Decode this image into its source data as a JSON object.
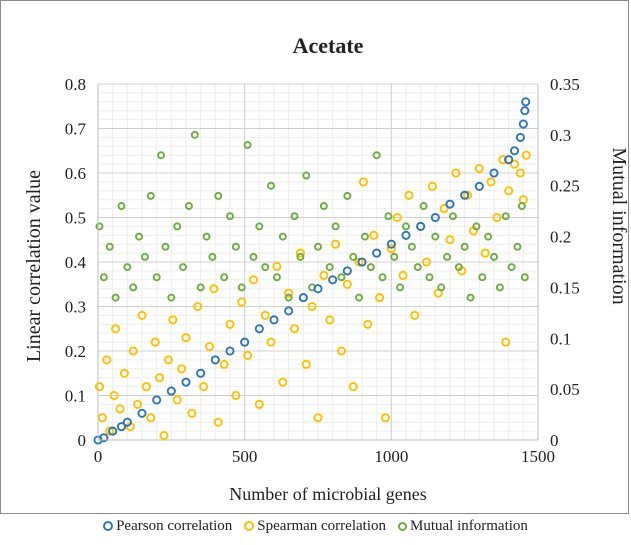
{
  "chart_data": {
    "type": "scatter",
    "title": "Acetate",
    "xlabel": "Number of microbial genes",
    "ylabel_left": "Linear correlation value",
    "ylabel_right": "Mutual information",
    "xlim": [
      0,
      1500
    ],
    "ylim_left": [
      0,
      0.8
    ],
    "ylim_right": [
      0,
      0.35
    ],
    "x_ticks": [
      "0",
      "500",
      "1000",
      "1500"
    ],
    "y_left_ticks": [
      "0",
      "0.1",
      "0.2",
      "0.3",
      "0.4",
      "0.5",
      "0.6",
      "0.7",
      "0.8"
    ],
    "y_right_ticks": [
      "0",
      "0.05",
      "0.1",
      "0.15",
      "0.2",
      "0.25",
      "0.3",
      "0.35"
    ],
    "grid": true,
    "legend_position": "bottom",
    "series": [
      {
        "name": "Pearson correlation",
        "axis": "left",
        "color": "#2e75b6",
        "marker": "hollow-circle",
        "points": [
          [
            0,
            0.0
          ],
          [
            20,
            0.005
          ],
          [
            50,
            0.02
          ],
          [
            80,
            0.03
          ],
          [
            100,
            0.04
          ],
          [
            150,
            0.06
          ],
          [
            200,
            0.09
          ],
          [
            250,
            0.11
          ],
          [
            300,
            0.13
          ],
          [
            350,
            0.15
          ],
          [
            400,
            0.18
          ],
          [
            450,
            0.2
          ],
          [
            500,
            0.22
          ],
          [
            550,
            0.25
          ],
          [
            600,
            0.27
          ],
          [
            650,
            0.29
          ],
          [
            700,
            0.32
          ],
          [
            750,
            0.34
          ],
          [
            800,
            0.36
          ],
          [
            850,
            0.38
          ],
          [
            900,
            0.4
          ],
          [
            950,
            0.42
          ],
          [
            1000,
            0.44
          ],
          [
            1050,
            0.46
          ],
          [
            1100,
            0.48
          ],
          [
            1150,
            0.5
          ],
          [
            1200,
            0.53
          ],
          [
            1250,
            0.55
          ],
          [
            1300,
            0.57
          ],
          [
            1350,
            0.6
          ],
          [
            1400,
            0.63
          ],
          [
            1420,
            0.65
          ],
          [
            1440,
            0.68
          ],
          [
            1450,
            0.71
          ],
          [
            1455,
            0.74
          ],
          [
            1458,
            0.76
          ]
        ]
      },
      {
        "name": "Spearman correlation",
        "axis": "left",
        "color": "#ffc000",
        "marker": "hollow-circle",
        "points": [
          [
            5,
            0.12
          ],
          [
            15,
            0.05
          ],
          [
            30,
            0.18
          ],
          [
            40,
            0.02
          ],
          [
            55,
            0.1
          ],
          [
            60,
            0.25
          ],
          [
            75,
            0.07
          ],
          [
            90,
            0.15
          ],
          [
            110,
            0.03
          ],
          [
            120,
            0.2
          ],
          [
            135,
            0.08
          ],
          [
            150,
            0.28
          ],
          [
            165,
            0.12
          ],
          [
            180,
            0.05
          ],
          [
            195,
            0.22
          ],
          [
            210,
            0.14
          ],
          [
            225,
            0.01
          ],
          [
            240,
            0.18
          ],
          [
            255,
            0.27
          ],
          [
            270,
            0.09
          ],
          [
            285,
            0.16
          ],
          [
            300,
            0.23
          ],
          [
            320,
            0.06
          ],
          [
            340,
            0.3
          ],
          [
            360,
            0.12
          ],
          [
            380,
            0.21
          ],
          [
            395,
            0.34
          ],
          [
            410,
            0.04
          ],
          [
            430,
            0.17
          ],
          [
            450,
            0.26
          ],
          [
            470,
            0.1
          ],
          [
            490,
            0.31
          ],
          [
            510,
            0.19
          ],
          [
            530,
            0.36
          ],
          [
            550,
            0.08
          ],
          [
            570,
            0.28
          ],
          [
            590,
            0.22
          ],
          [
            610,
            0.39
          ],
          [
            630,
            0.13
          ],
          [
            650,
            0.33
          ],
          [
            670,
            0.25
          ],
          [
            690,
            0.42
          ],
          [
            710,
            0.17
          ],
          [
            730,
            0.3
          ],
          [
            750,
            0.05
          ],
          [
            770,
            0.37
          ],
          [
            790,
            0.27
          ],
          [
            810,
            0.44
          ],
          [
            830,
            0.2
          ],
          [
            850,
            0.35
          ],
          [
            870,
            0.12
          ],
          [
            890,
            0.4
          ],
          [
            905,
            0.58
          ],
          [
            920,
            0.26
          ],
          [
            940,
            0.46
          ],
          [
            960,
            0.32
          ],
          [
            980,
            0.05
          ],
          [
            1000,
            0.43
          ],
          [
            1020,
            0.5
          ],
          [
            1040,
            0.37
          ],
          [
            1060,
            0.55
          ],
          [
            1080,
            0.28
          ],
          [
            1100,
            0.48
          ],
          [
            1120,
            0.4
          ],
          [
            1140,
            0.57
          ],
          [
            1160,
            0.33
          ],
          [
            1180,
            0.52
          ],
          [
            1200,
            0.45
          ],
          [
            1220,
            0.6
          ],
          [
            1240,
            0.38
          ],
          [
            1260,
            0.55
          ],
          [
            1280,
            0.47
          ],
          [
            1300,
            0.61
          ],
          [
            1320,
            0.42
          ],
          [
            1340,
            0.58
          ],
          [
            1360,
            0.5
          ],
          [
            1380,
            0.63
          ],
          [
            1390,
            0.22
          ],
          [
            1400,
            0.56
          ],
          [
            1420,
            0.62
          ],
          [
            1440,
            0.6
          ],
          [
            1450,
            0.54
          ],
          [
            1460,
            0.64
          ]
        ]
      },
      {
        "name": "Mutual information",
        "axis": "right",
        "color": "#70ad47",
        "marker": "small-circle",
        "points": [
          [
            5,
            0.21
          ],
          [
            20,
            0.16
          ],
          [
            40,
            0.19
          ],
          [
            60,
            0.14
          ],
          [
            80,
            0.23
          ],
          [
            100,
            0.17
          ],
          [
            120,
            0.15
          ],
          [
            140,
            0.2
          ],
          [
            160,
            0.18
          ],
          [
            180,
            0.24
          ],
          [
            200,
            0.16
          ],
          [
            215,
            0.28
          ],
          [
            230,
            0.19
          ],
          [
            250,
            0.14
          ],
          [
            270,
            0.21
          ],
          [
            290,
            0.17
          ],
          [
            310,
            0.23
          ],
          [
            330,
            0.3
          ],
          [
            350,
            0.15
          ],
          [
            370,
            0.2
          ],
          [
            390,
            0.18
          ],
          [
            410,
            0.24
          ],
          [
            430,
            0.16
          ],
          [
            450,
            0.22
          ],
          [
            470,
            0.19
          ],
          [
            490,
            0.15
          ],
          [
            510,
            0.29
          ],
          [
            530,
            0.18
          ],
          [
            550,
            0.21
          ],
          [
            570,
            0.17
          ],
          [
            590,
            0.25
          ],
          [
            610,
            0.16
          ],
          [
            630,
            0.2
          ],
          [
            650,
            0.14
          ],
          [
            670,
            0.22
          ],
          [
            690,
            0.18
          ],
          [
            710,
            0.26
          ],
          [
            730,
            0.15
          ],
          [
            750,
            0.19
          ],
          [
            770,
            0.23
          ],
          [
            790,
            0.17
          ],
          [
            810,
            0.21
          ],
          [
            830,
            0.16
          ],
          [
            850,
            0.24
          ],
          [
            870,
            0.18
          ],
          [
            890,
            0.14
          ],
          [
            910,
            0.2
          ],
          [
            930,
            0.17
          ],
          [
            950,
            0.28
          ],
          [
            970,
            0.16
          ],
          [
            990,
            0.22
          ],
          [
            1010,
            0.18
          ],
          [
            1030,
            0.15
          ],
          [
            1050,
            0.21
          ],
          [
            1070,
            0.19
          ],
          [
            1090,
            0.17
          ],
          [
            1110,
            0.23
          ],
          [
            1130,
            0.16
          ],
          [
            1150,
            0.2
          ],
          [
            1170,
            0.15
          ],
          [
            1190,
            0.18
          ],
          [
            1210,
            0.22
          ],
          [
            1230,
            0.17
          ],
          [
            1250,
            0.19
          ],
          [
            1270,
            0.14
          ],
          [
            1290,
            0.21
          ],
          [
            1310,
            0.16
          ],
          [
            1330,
            0.2
          ],
          [
            1350,
            0.18
          ],
          [
            1370,
            0.15
          ],
          [
            1390,
            0.22
          ],
          [
            1410,
            0.17
          ],
          [
            1430,
            0.19
          ],
          [
            1445,
            0.23
          ],
          [
            1455,
            0.16
          ]
        ]
      }
    ]
  }
}
